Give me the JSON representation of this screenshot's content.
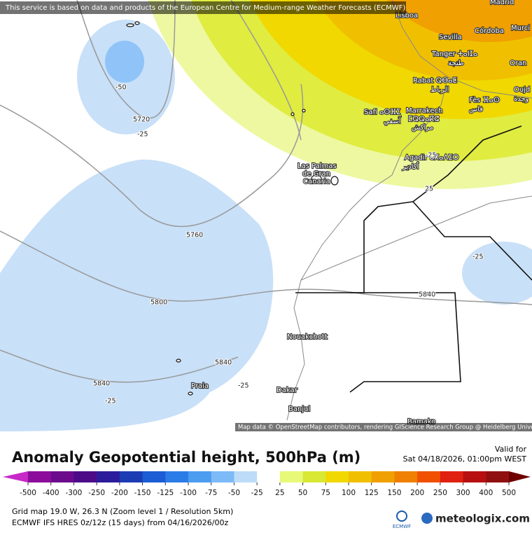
{
  "banner": "This service is based on data and products of the European Centre for Medium-range Weather Forecasts (ECMWF)",
  "map": {
    "places": [
      "Madrid",
      "Lisboa",
      "Sevilla",
      "Córdoba",
      "Murci",
      "Tanger ⵜⴰⵏⵊⴰ",
      "طنجة",
      "Oran",
      "Rabat ⵕⴱⴰⵟ",
      "الرباط",
      "Oujd",
      "وجدة",
      "Fès ⴼⴰⵙ",
      "فاس",
      "Safi ⴰⵙⴼⵉ",
      "آسفي",
      "Marrakech",
      "ⵎⵕⵕⴰⴽⵛ",
      "مراكش",
      "Agadir ⴰⴳⴰⴷⵉⵔ",
      "أكادير",
      "Las Palmas",
      "de Gran",
      "Canaria",
      "Nouakchott",
      "Dakar",
      "Banjul",
      "Praia",
      "Bamako"
    ],
    "contours": [
      -50,
      5720,
      -25,
      5760,
      5800,
      5840,
      5840,
      5840,
      -25,
      -25,
      -25,
      25,
      -25
    ],
    "attribution": "Map data © OpenStreetMap contributors, rendering GIScience Research Group @ Heidelberg University"
  },
  "legend": {
    "title": "Anomaly Geopotential height, 500hPa (m)",
    "valid_label": "Valid for",
    "valid_time": "Sat 04/18/2026, 01:00pm WEST",
    "ticks": [
      -500,
      -400,
      -300,
      -250,
      -200,
      -150,
      -125,
      -100,
      -75,
      -50,
      -25,
      25,
      50,
      75,
      100,
      125,
      150,
      200,
      250,
      300,
      400,
      500
    ],
    "colors": [
      "#c828c8",
      "#8c0c9c",
      "#6c0c8c",
      "#4c0c88",
      "#2c1c9c",
      "#1c3cb4",
      "#1c5cd4",
      "#2c7ce8",
      "#4c9cf0",
      "#7cbaf8",
      "#bcdcf8",
      "#ffffff",
      "#e8f878",
      "#d8e834",
      "#f0d800",
      "#f0c000",
      "#f0a000",
      "#f08000",
      "#f05000",
      "#e02010",
      "#b81010",
      "#901010",
      "#700000"
    ]
  },
  "footer": {
    "line1": "Grid map 19.0 W, 26.3 N (Zoom level 1 / Resolution 5km)",
    "line2": "ECMWF IFS HRES 0z/12z (15 days) from  04/16/2026/00z",
    "ecmwf": "ECMWF",
    "brand": "meteologix.com"
  }
}
